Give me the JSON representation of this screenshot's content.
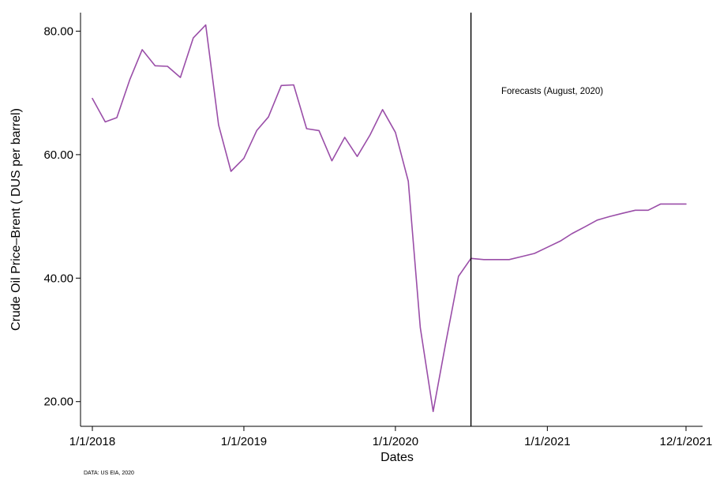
{
  "chart_data": {
    "type": "line",
    "title": "",
    "xlabel": "Dates",
    "ylabel": "Crude Oil Price–Brent ( DUS per barrel)",
    "annotation": "Forecasts (August, 2020)",
    "source": "DATA: US EIA, 2020",
    "colors": {
      "line": "#9a4ea8",
      "forecast_line": "#000000",
      "axis": "#000000"
    },
    "grid": false,
    "legend": "none",
    "x_range": [
      "2018-01-01",
      "2021-12-01"
    ],
    "ylim": [
      16,
      83
    ],
    "forecast_start": "2020-07-01",
    "x_ticks": [
      {
        "date": "2018-01-01",
        "label": "1/1/2018"
      },
      {
        "date": "2019-01-01",
        "label": "1/1/2019"
      },
      {
        "date": "2020-01-01",
        "label": "1/1/2020"
      },
      {
        "date": "2021-01-01",
        "label": "1/1/2021"
      },
      {
        "date": "2021-12-01",
        "label": "12/1/2021"
      }
    ],
    "y_ticks": [
      {
        "value": 20,
        "label": "20.00"
      },
      {
        "value": 40,
        "label": "40.00"
      },
      {
        "value": 60,
        "label": "60.00"
      },
      {
        "value": 80,
        "label": "80.00"
      }
    ],
    "series": [
      {
        "x": [
          "2018-01-01",
          "2018-02-01",
          "2018-03-01",
          "2018-04-01",
          "2018-05-01",
          "2018-06-01",
          "2018-07-01",
          "2018-08-01",
          "2018-09-01",
          "2018-10-01",
          "2018-11-01",
          "2018-12-01",
          "2019-01-01",
          "2019-02-01",
          "2019-03-01",
          "2019-04-01",
          "2019-05-01",
          "2019-06-01",
          "2019-07-01",
          "2019-08-01",
          "2019-09-01",
          "2019-10-01",
          "2019-11-01",
          "2019-12-01",
          "2020-01-01",
          "2020-02-01",
          "2020-03-01",
          "2020-04-01",
          "2020-05-01",
          "2020-06-01",
          "2020-07-01",
          "2020-08-01",
          "2020-09-01",
          "2020-10-01",
          "2020-11-01",
          "2020-12-01",
          "2021-01-01",
          "2021-02-01",
          "2021-03-01",
          "2021-04-01",
          "2021-05-01",
          "2021-06-01",
          "2021-07-01",
          "2021-08-01",
          "2021-09-01",
          "2021-10-01",
          "2021-11-01",
          "2021-12-01"
        ],
        "values": [
          69.1,
          65.3,
          66.0,
          72.1,
          77.0,
          74.4,
          74.3,
          72.5,
          78.9,
          81.0,
          64.8,
          57.3,
          59.4,
          63.9,
          66.1,
          71.2,
          71.3,
          64.2,
          63.9,
          59.0,
          62.8,
          59.7,
          63.2,
          67.3,
          63.6,
          55.7,
          32.0,
          18.4,
          29.4,
          40.3,
          43.2,
          43.0,
          43.0,
          43.0,
          43.5,
          44.0,
          45.0,
          46.0,
          47.2,
          48.3,
          49.4,
          50.0,
          50.5,
          51.0,
          51.0,
          52.0,
          52.0,
          52.0
        ]
      }
    ]
  }
}
